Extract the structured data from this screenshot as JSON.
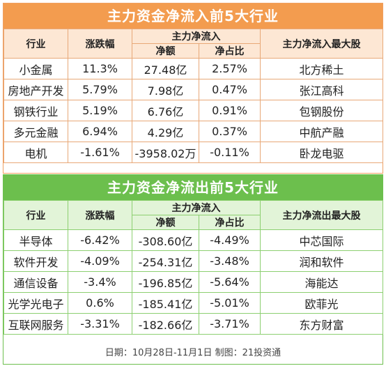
{
  "inflow": {
    "title": "主力资金净流入前5大行业",
    "headers": {
      "industry": "行业",
      "change": "涨跌幅",
      "group": "主力净流入",
      "amount": "净额",
      "ratio": "净占比",
      "top_stock": "主力净流入最大股"
    },
    "rows": [
      {
        "industry": "小金属",
        "change": "11.3%",
        "amount": "27.48亿",
        "ratio": "2.57%",
        "stock": "北方稀土"
      },
      {
        "industry": "房地产开发",
        "change": "5.79%",
        "amount": "7.98亿",
        "ratio": "0.47%",
        "stock": "张江高科"
      },
      {
        "industry": "钢铁行业",
        "change": "5.19%",
        "amount": "6.76亿",
        "ratio": "0.91%",
        "stock": "包钢股份"
      },
      {
        "industry": "多元金融",
        "change": "6.94%",
        "amount": "4.29亿",
        "ratio": "0.37%",
        "stock": "中航产融"
      },
      {
        "industry": "电机",
        "change": "-1.61%",
        "amount": "-3958.02万",
        "ratio": "-0.11%",
        "stock": "卧龙电驱"
      }
    ],
    "accent_color": "#f39c4f"
  },
  "outflow": {
    "title": "主力资金净流出前5大行业",
    "headers": {
      "industry": "行业",
      "change": "涨跌幅",
      "group": "主力净流入",
      "amount": "净额",
      "ratio": "净占比",
      "top_stock": "主力净流出最大股"
    },
    "rows": [
      {
        "industry": "半导体",
        "change": "-6.42%",
        "amount": "-308.60亿",
        "ratio": "-4.49%",
        "stock": "中芯国际"
      },
      {
        "industry": "软件开发",
        "change": "-4.09%",
        "amount": "-254.31亿",
        "ratio": "-3.48%",
        "stock": "润和软件"
      },
      {
        "industry": "通信设备",
        "change": "-3.4%",
        "amount": "-196.85亿",
        "ratio": "-5.64%",
        "stock": "海能达"
      },
      {
        "industry": "光学光电子",
        "change": "0.6%",
        "amount": "-185.41亿",
        "ratio": "-5.01%",
        "stock": "欧菲光"
      },
      {
        "industry": "互联网服务",
        "change": "-3.31%",
        "amount": "-182.66亿",
        "ratio": "-3.71%",
        "stock": "东方财富"
      }
    ],
    "accent_color": "#6cbf4d"
  },
  "footer": "日期：10月28日-11月1日 制图：21投资通"
}
